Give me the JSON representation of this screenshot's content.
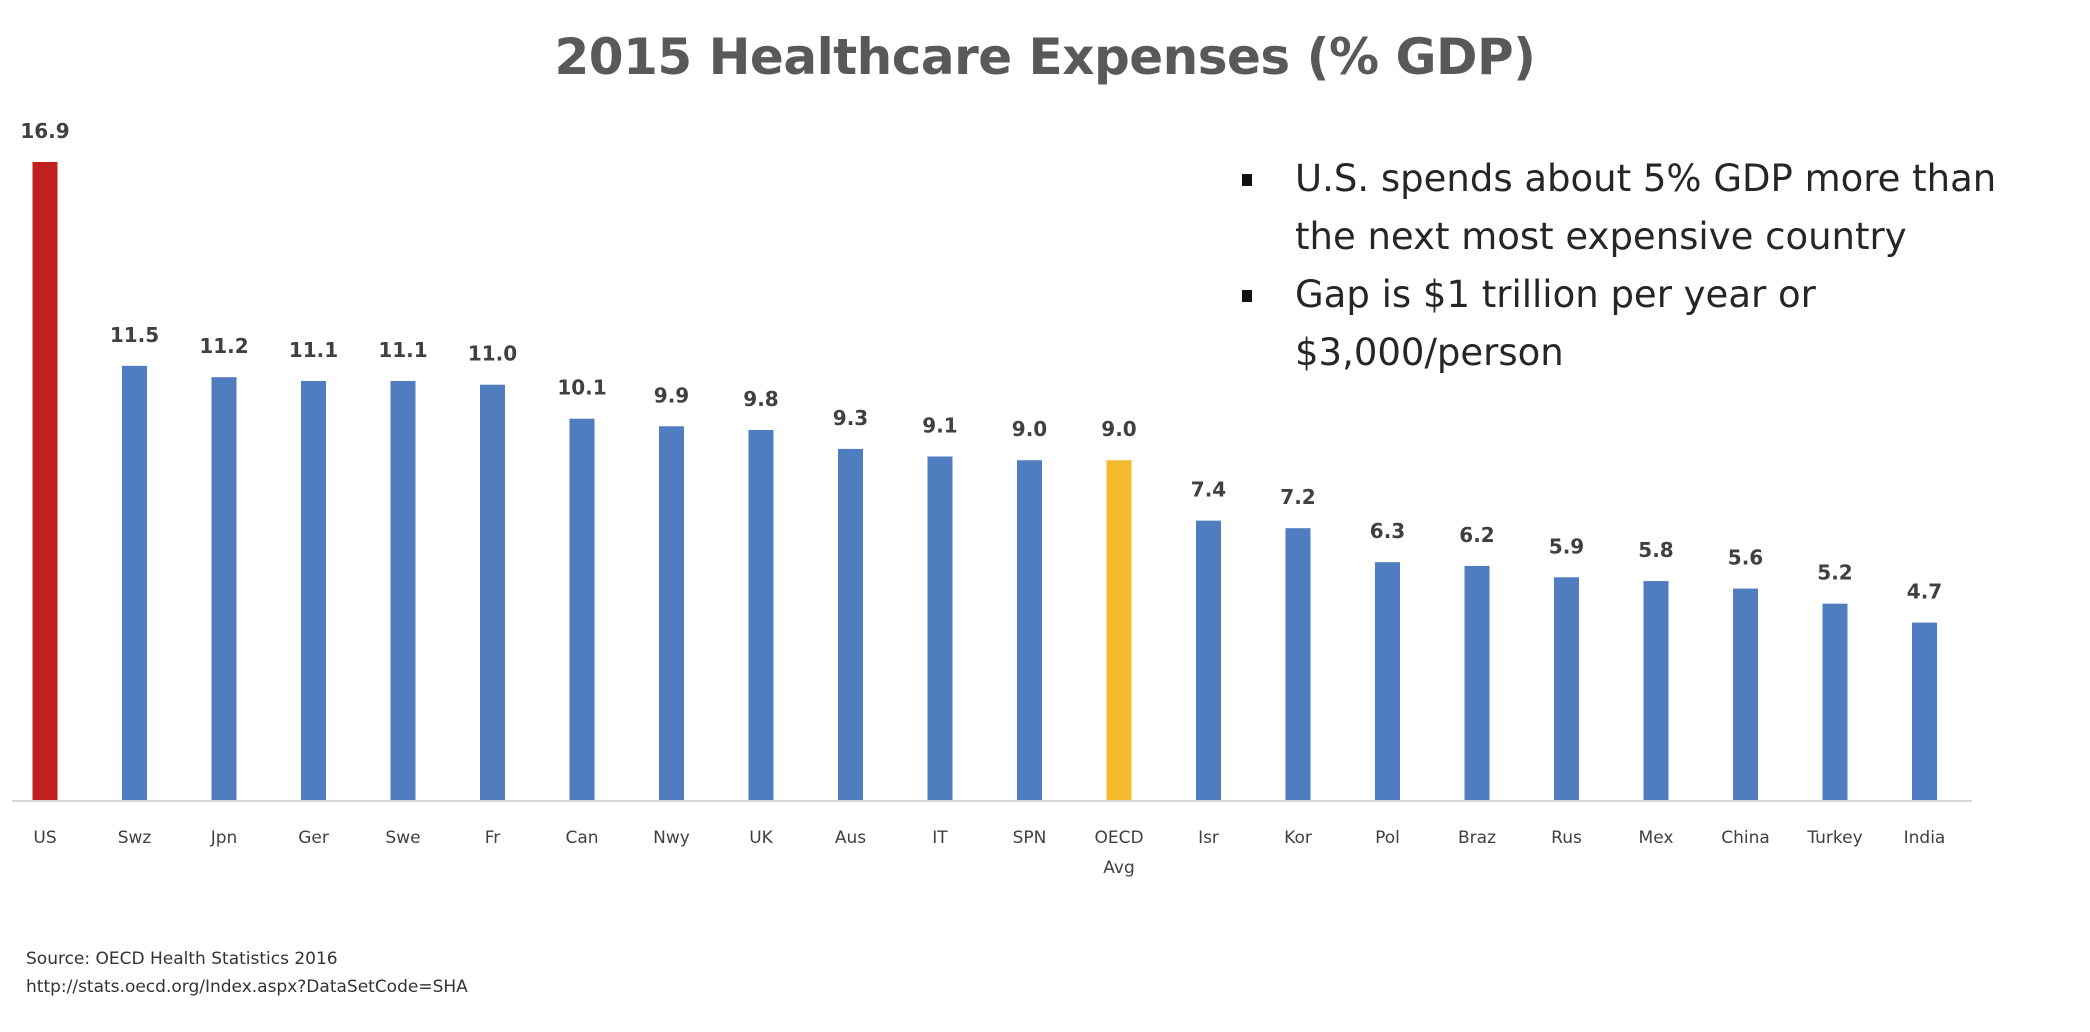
{
  "chart_data": {
    "type": "bar",
    "title": "2015 Healthcare Expenses (% GDP)",
    "xlabel": "",
    "ylabel": "",
    "ylim": [
      0,
      16.9
    ],
    "grid": false,
    "legend": "none",
    "categories": [
      "US",
      "Swz",
      "Jpn",
      "Ger",
      "Swe",
      "Fr",
      "Can",
      "Nwy",
      "UK",
      "Aus",
      "IT",
      "SPN",
      "OECD Avg",
      "Isr",
      "Kor",
      "Pol",
      "Braz",
      "Rus",
      "Mex",
      "China",
      "Turkey",
      "India"
    ],
    "values": [
      16.9,
      11.5,
      11.2,
      11.1,
      11.1,
      11.0,
      10.1,
      9.9,
      9.8,
      9.3,
      9.1,
      9.0,
      9.0,
      7.4,
      7.2,
      6.3,
      6.2,
      5.9,
      5.8,
      5.6,
      5.2,
      4.7
    ],
    "data_labels": [
      "16.9",
      "11.5",
      "11.2",
      "11.1",
      "11.1",
      "11.0",
      "10.1",
      "9.9",
      "9.8",
      "9.3",
      "9.1",
      "9.0",
      "9.0",
      "7.4",
      "7.2",
      "6.3",
      "6.2",
      "5.9",
      "5.8",
      "5.6",
      "5.2",
      "4.7"
    ],
    "highlight": {
      "US": "#c0201e",
      "OECD Avg": "#f2bb2e"
    },
    "default_color": "#4f7dc0",
    "annotations": [
      "U.S. spends about 5% GDP more than the next most expensive country",
      "Gap is $1 trillion per year or $3,000/person"
    ],
    "source": [
      "Source:  OECD Health Statistics 2016",
      "http://stats.oecd.org/Index.aspx?DataSetCode=SHA"
    ]
  },
  "colors": {
    "axis": "#d9d9d9",
    "label": "#404040",
    "title": "#595959"
  }
}
